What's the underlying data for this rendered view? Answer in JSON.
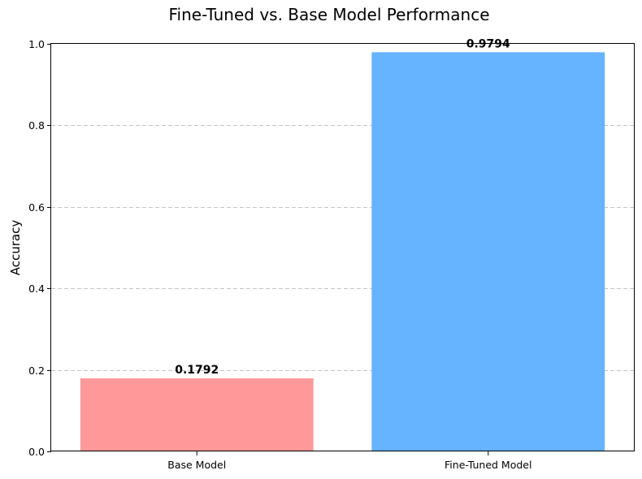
{
  "chart_data": {
    "type": "bar",
    "title": "Fine-Tuned vs. Base Model Performance",
    "xlabel": "",
    "ylabel": "Accuracy",
    "categories": [
      "Base Model",
      "Fine-Tuned Model"
    ],
    "values": [
      0.1792,
      0.9794
    ],
    "value_labels": [
      "0.1792",
      "0.9794"
    ],
    "colors": [
      "#ff9999",
      "#66b3ff"
    ],
    "ylim": [
      0,
      1.0
    ],
    "yticks": [
      0.0,
      0.2,
      0.4,
      0.6,
      0.8,
      1.0
    ],
    "ytick_labels": [
      "0.0",
      "0.2",
      "0.4",
      "0.6",
      "0.8",
      "1.0"
    ],
    "grid": "y-dashed",
    "legend": "none"
  }
}
